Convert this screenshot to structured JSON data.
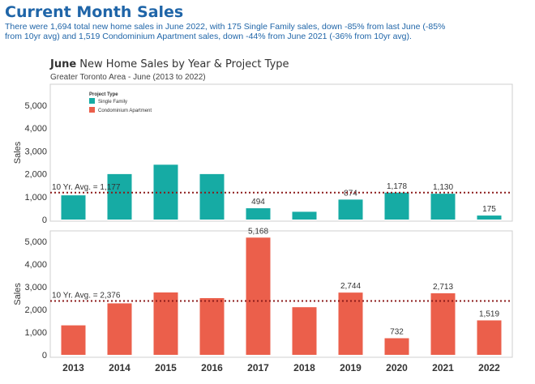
{
  "header": {
    "title": "Current Month Sales",
    "summary": "There were 1,694 total new home sales in June 2022, with 175 Single Family sales, down -85% from last June (-85% from 10yr avg) and 1,519 Condominium Apartment sales, down -44% from June 2021 (-36% from 10yr avg)."
  },
  "colors": {
    "single_family": "#16aba4",
    "condo": "#eb5f4b",
    "avg_line": "#8b1a1a",
    "header": "#1f65a8"
  },
  "chart_data": {
    "type": "bar",
    "title_bold": "June",
    "title_rest": " New Home Sales by Year & Project Type",
    "subtitle": "Greater Toronto Area - June (2013 to 2022)",
    "categories": [
      "2013",
      "2014",
      "2015",
      "2016",
      "2017",
      "2018",
      "2019",
      "2020",
      "2021",
      "2022"
    ],
    "legend_title": "Project Type",
    "panels": [
      {
        "name": "Single Family",
        "ylabel": "Sales",
        "ylim": [
          0,
          5500
        ],
        "yticks": [
          0,
          1000,
          2000,
          3000,
          4000,
          5000
        ],
        "ytick_labels": [
          "0",
          "1,000",
          "2,000",
          "3,000",
          "4,000",
          "5,000"
        ],
        "values": [
          1060,
          1990,
          2400,
          1990,
          494,
          340,
          874,
          1178,
          1130,
          175
        ],
        "data_labels": [
          "",
          "",
          "",
          "",
          "494",
          "",
          "874",
          "1,178",
          "1,130",
          "175"
        ],
        "avg_value": 1177,
        "avg_label": "10 Yr. Avg. = 1,177"
      },
      {
        "name": "Condominium Apartment",
        "ylabel": "Sales",
        "ylim": [
          0,
          5500
        ],
        "yticks": [
          0,
          1000,
          2000,
          3000,
          4000,
          5000
        ],
        "ytick_labels": [
          "0",
          "1,000",
          "2,000",
          "3,000",
          "4,000",
          "5,000"
        ],
        "values": [
          1300,
          2270,
          2750,
          2500,
          5168,
          2100,
          2744,
          732,
          2713,
          1519
        ],
        "data_labels": [
          "",
          "",
          "",
          "",
          "5,168",
          "",
          "2,744",
          "732",
          "2,713",
          "1,519"
        ],
        "avg_value": 2376,
        "avg_label": "10 Yr. Avg. = 2,376"
      }
    ],
    "legend_placement": "top-left",
    "grid": false
  }
}
